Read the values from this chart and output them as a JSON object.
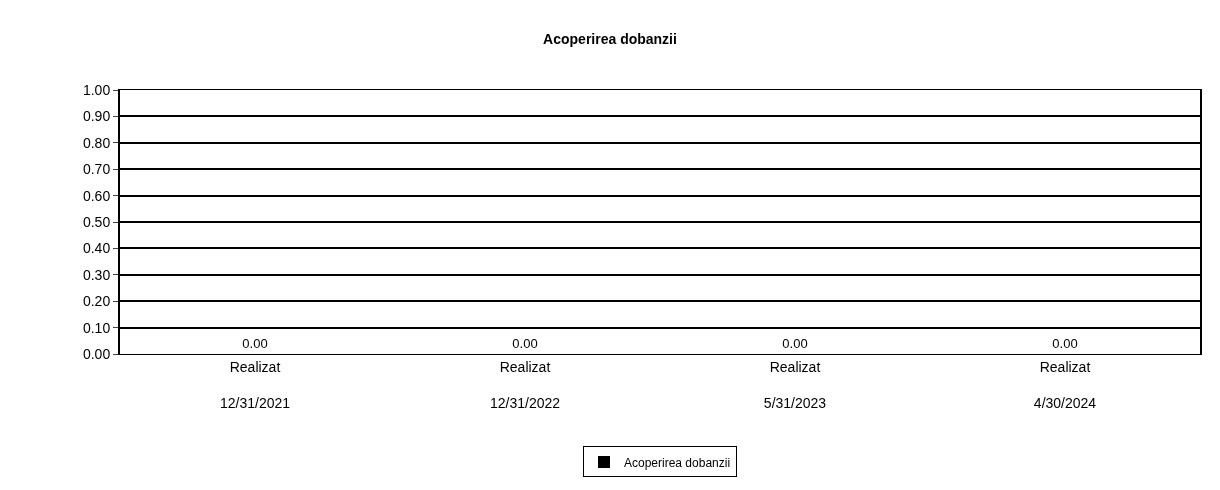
{
  "chart_data": {
    "type": "bar",
    "title": "Acoperirea dobanzii",
    "categories": [
      "Realizat\n12/31/2021",
      "Realizat\n12/31/2022",
      "Realizat\n5/31/2023",
      "Realizat\n4/30/2024"
    ],
    "series": [
      {
        "name": "Acoperirea dobanzii",
        "color": "#000000",
        "values": [
          0,
          0,
          0,
          0
        ],
        "value_labels": [
          "0.00",
          "0.00",
          "0.00",
          "0.00"
        ]
      }
    ],
    "ylim": [
      0,
      1
    ],
    "yticks": [
      {
        "value": 0,
        "label": "0.00"
      },
      {
        "value": 0.1,
        "label": "0.10"
      },
      {
        "value": 0.2,
        "label": "0.20"
      },
      {
        "value": 0.3,
        "label": "0.30"
      },
      {
        "value": 0.4,
        "label": "0.40"
      },
      {
        "value": 0.5,
        "label": "0.50"
      },
      {
        "value": 0.6,
        "label": "0.60"
      },
      {
        "value": 0.7,
        "label": "0.70"
      },
      {
        "value": 0.8,
        "label": "0.80"
      },
      {
        "value": 0.9,
        "label": "0.90"
      },
      {
        "value": 1,
        "label": "1.00"
      }
    ],
    "grid": "y",
    "legend": "bottom"
  }
}
